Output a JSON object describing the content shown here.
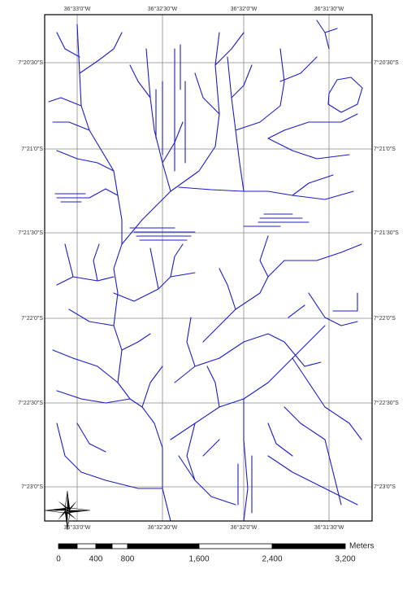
{
  "map": {
    "longitude_labels": [
      "36°33'0\"W",
      "36°32'30\"W",
      "36°32'0\"W",
      "36°31'30\"W"
    ],
    "latitude_labels": [
      "7°20'30\"S",
      "7°21'0\"S",
      "7°21'30\"S",
      "7°22'0\"S",
      "7°22'30\"S",
      "7°23'0\"S"
    ],
    "scale_bar": {
      "labels": [
        "0",
        "400",
        "800",
        "1,600",
        "2,400",
        "3,200"
      ],
      "unit": "Meters"
    }
  }
}
